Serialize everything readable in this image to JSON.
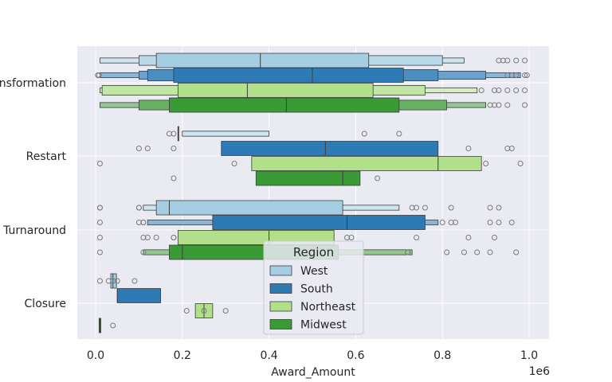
{
  "chart_data": {
    "type": "boxenplot",
    "orientation": "horizontal",
    "xlabel": "Award_Amount",
    "ylabel": "",
    "x_offset_label": "1e6",
    "xlim": [
      -0.04,
      1.04
    ],
    "x_ticks": [
      0.0,
      0.2,
      0.4,
      0.6,
      0.8,
      1.0
    ],
    "x_tick_labels": [
      "0.0",
      "0.2",
      "0.4",
      "0.6",
      "0.8",
      "1.0"
    ],
    "categories": [
      "Transformation",
      "Restart",
      "Turnaround",
      "Closure"
    ],
    "category_tick_labels": [
      "nsformation",
      "Restart",
      "Turnaround",
      "Closure"
    ],
    "grid": true,
    "legend": {
      "title": "Region",
      "position": "lower-center",
      "entries": [
        "West",
        "South",
        "Northeast",
        "Midwest"
      ]
    },
    "colors": {
      "West": "#a6cee3",
      "South": "#2d7ab5",
      "Northeast": "#b2df8a",
      "Midwest": "#3a9a35"
    },
    "series": [
      {
        "name": "West",
        "groups": [
          {
            "levels": [
              [
                0.01,
                0.85
              ],
              [
                0.1,
                0.8
              ],
              [
                0.14,
                0.63
              ]
            ],
            "median": 0.38,
            "outliers": [
              0.93,
              0.94,
              0.95,
              0.97,
              0.99
            ]
          },
          {
            "levels": [
              [
                0.2,
                0.4
              ],
              [
                0.19,
                0.19
              ]
            ],
            "median": 0.19,
            "outliers": [
              0.17,
              0.18,
              0.62,
              0.7
            ]
          },
          {
            "levels": [
              [
                0.11,
                0.7
              ],
              [
                0.14,
                0.57
              ]
            ],
            "median": 0.17,
            "outliers": [
              0.01,
              0.01,
              0.1,
              0.1,
              0.73,
              0.74,
              0.76,
              0.82,
              0.91,
              0.93
            ]
          },
          {
            "levels": [
              [
                0.035,
                0.048
              ]
            ],
            "median": 0.04,
            "outliers": [
              0.01,
              0.03,
              0.04,
              0.05,
              0.09
            ]
          }
        ]
      },
      {
        "name": "South",
        "groups": [
          {
            "levels": [
              [
                0.01,
                0.98
              ],
              [
                0.1,
                0.9
              ],
              [
                0.12,
                0.79
              ],
              [
                0.18,
                0.71
              ]
            ],
            "median": 0.5,
            "outliers": [
              0.005,
              0.008,
              0.95,
              0.96,
              0.97,
              0.99,
              0.995
            ]
          },
          {
            "levels": [
              [
                0.29,
                0.79
              ]
            ],
            "median": 0.53,
            "outliers": [
              0.1,
              0.12,
              0.18,
              0.86,
              0.95,
              0.96
            ]
          },
          {
            "levels": [
              [
                0.12,
                0.79
              ],
              [
                0.27,
                0.76
              ]
            ],
            "median": 0.58,
            "outliers": [
              0.01,
              0.1,
              0.11,
              0.11,
              0.8,
              0.82,
              0.83,
              0.91,
              0.93,
              0.96
            ]
          },
          {
            "levels": [
              [
                0.05,
                0.15
              ]
            ],
            "median": 0.05,
            "outliers": []
          }
        ]
      },
      {
        "name": "Northeast",
        "groups": [
          {
            "levels": [
              [
                0.01,
                0.88
              ],
              [
                0.015,
                0.76
              ],
              [
                0.19,
                0.64
              ]
            ],
            "median": 0.35,
            "outliers": [
              0.89,
              0.92,
              0.93,
              0.95,
              0.97,
              0.99
            ]
          },
          {
            "levels": [
              [
                0.36,
                0.89
              ]
            ],
            "median": 0.79,
            "outliers": [
              0.01,
              0.32,
              0.9,
              0.98
            ]
          },
          {
            "levels": [
              [
                0.19,
                0.55
              ]
            ],
            "median": 0.4,
            "outliers": [
              0.01,
              0.11,
              0.12,
              0.14,
              0.18,
              0.18,
              0.58,
              0.59,
              0.74,
              0.86,
              0.92
            ]
          },
          {
            "levels": [
              [
                0.23,
                0.27
              ]
            ],
            "median": 0.25,
            "outliers": [
              0.21,
              0.25,
              0.3
            ]
          }
        ]
      },
      {
        "name": "Midwest",
        "groups": [
          {
            "levels": [
              [
                0.01,
                0.9
              ],
              [
                0.1,
                0.81
              ],
              [
                0.17,
                0.7
              ]
            ],
            "median": 0.44,
            "outliers": [
              0.91,
              0.92,
              0.93,
              0.95,
              0.99
            ]
          },
          {
            "levels": [
              [
                0.37,
                0.61
              ]
            ],
            "median": 0.57,
            "outliers": [
              0.18,
              0.65
            ]
          },
          {
            "levels": [
              [
                0.11,
                0.73
              ],
              [
                0.17,
                0.56
              ]
            ],
            "median": 0.2,
            "outliers": [
              0.01,
              0.11,
              0.72,
              0.81,
              0.85,
              0.88,
              0.91,
              0.97
            ]
          },
          {
            "levels": [
              [
                0.008,
                0.012
              ]
            ],
            "median": 0.01,
            "outliers": [
              0.04
            ]
          }
        ]
      }
    ]
  }
}
